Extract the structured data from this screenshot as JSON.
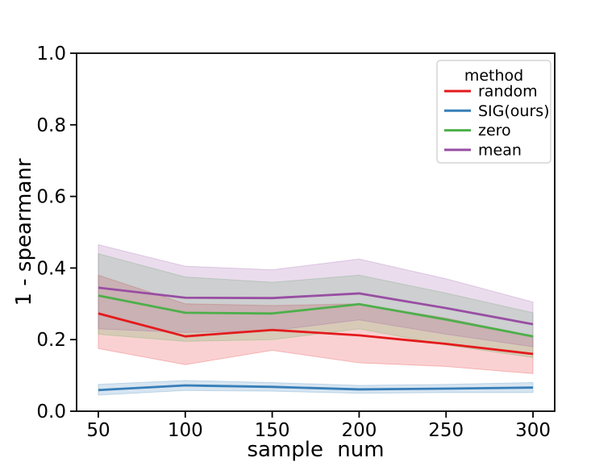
{
  "figure": {
    "background": "#ffffff",
    "axes_color": "#000000"
  },
  "chart_data": {
    "type": "line",
    "title": "",
    "xlabel": "sample num",
    "ylabel": "1 - spearmanr",
    "xlim": [
      37.5,
      312.5
    ],
    "ylim": [
      0.0,
      1.0
    ],
    "grid": false,
    "x": [
      50,
      100,
      150,
      200,
      250,
      300
    ],
    "xtick_labels": [
      "50",
      "100",
      "150",
      "200",
      "250",
      "300"
    ],
    "yticks": [
      0.0,
      0.2,
      0.4,
      0.6,
      0.8,
      1.0
    ],
    "ytick_labels": [
      "0.0",
      "0.2",
      "0.4",
      "0.6",
      "0.8",
      "1.0"
    ],
    "legend": {
      "title": "method",
      "position": "upper right"
    },
    "band_alpha": 0.2,
    "series": [
      {
        "name": "random",
        "color": "#e41a1c",
        "values": [
          0.273,
          0.209,
          0.227,
          0.212,
          0.188,
          0.16
        ],
        "band_low": [
          0.175,
          0.13,
          0.17,
          0.135,
          0.125,
          0.105
        ],
        "band_high": [
          0.38,
          0.3,
          0.295,
          0.3,
          0.26,
          0.21
        ]
      },
      {
        "name": "SIG(ours)",
        "color": "#377eb8",
        "values": [
          0.059,
          0.072,
          0.068,
          0.061,
          0.063,
          0.066
        ],
        "band_low": [
          0.045,
          0.058,
          0.056,
          0.05,
          0.052,
          0.052
        ],
        "band_high": [
          0.075,
          0.086,
          0.08,
          0.072,
          0.075,
          0.08
        ]
      },
      {
        "name": "zero",
        "color": "#4daf4a",
        "values": [
          0.323,
          0.275,
          0.273,
          0.299,
          0.256,
          0.209
        ],
        "band_low": [
          0.215,
          0.195,
          0.2,
          0.23,
          0.185,
          0.15
        ],
        "band_high": [
          0.44,
          0.375,
          0.36,
          0.38,
          0.33,
          0.275
        ]
      },
      {
        "name": "mean",
        "color": "#984ea3",
        "values": [
          0.345,
          0.317,
          0.316,
          0.329,
          0.288,
          0.243
        ],
        "band_low": [
          0.23,
          0.22,
          0.225,
          0.255,
          0.215,
          0.18
        ],
        "band_high": [
          0.465,
          0.405,
          0.395,
          0.425,
          0.37,
          0.305
        ]
      }
    ]
  }
}
